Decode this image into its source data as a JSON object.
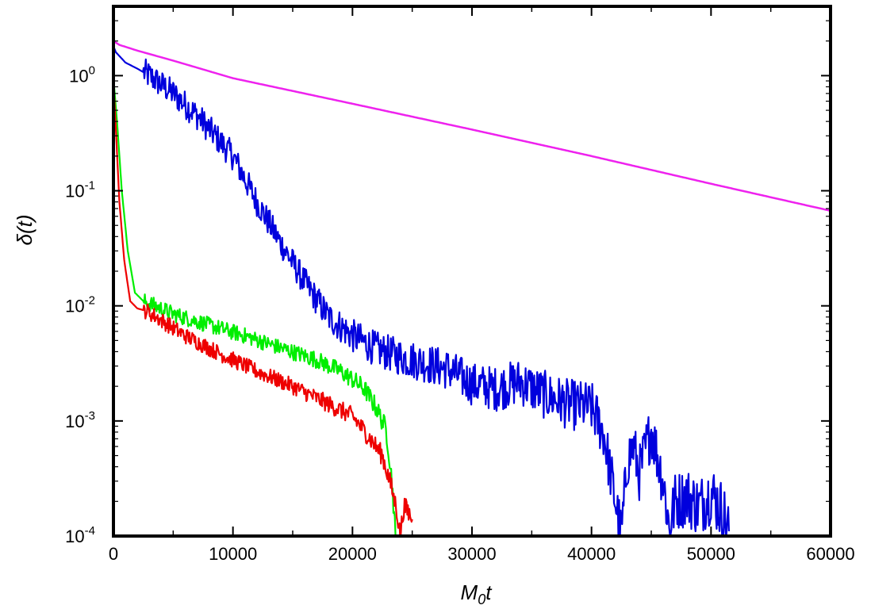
{
  "chart_data": {
    "type": "line",
    "title": "",
    "xlabel": {
      "main": "M",
      "sub": "0",
      "tail": "t"
    },
    "ylabel": "δ(t)",
    "xlim": [
      0,
      60000
    ],
    "ylim": [
      0.0001,
      4
    ],
    "yscale": "log",
    "grid": false,
    "legend": "none",
    "x_ticks": [
      {
        "value": 0,
        "label": "0"
      },
      {
        "value": 10000,
        "label": "10000"
      },
      {
        "value": 20000,
        "label": "20000"
      },
      {
        "value": 30000,
        "label": "30000"
      },
      {
        "value": 40000,
        "label": "40000"
      },
      {
        "value": 50000,
        "label": "50000"
      },
      {
        "value": 60000,
        "label": "60000"
      }
    ],
    "y_ticks": [
      {
        "value": 1,
        "base": "10",
        "exp": "0"
      },
      {
        "value": 0.1,
        "base": "10",
        "exp": "-1"
      },
      {
        "value": 0.01,
        "base": "10",
        "exp": "-2"
      },
      {
        "value": 0.001,
        "base": "10",
        "exp": "-3"
      },
      {
        "value": 0.0001,
        "base": "10",
        "exp": "-4"
      }
    ],
    "series": [
      {
        "color": "#ee22ee",
        "noise": 0,
        "x": [
          0,
          500,
          2000,
          5000,
          10000,
          20000,
          30000,
          40000,
          50000,
          60000
        ],
        "y": [
          2.0,
          1.85,
          1.65,
          1.35,
          0.95,
          0.57,
          0.34,
          0.2,
          0.115,
          0.067
        ]
      },
      {
        "color": "#0000dd",
        "noise": 0.25,
        "x": [
          0,
          200,
          1000,
          2000,
          3000,
          5000,
          7000,
          10000,
          12000,
          14000,
          16000,
          18000,
          20000,
          22000,
          24000,
          26000,
          28000,
          30000,
          32000,
          34000,
          36000,
          38000,
          40000,
          41000,
          42000,
          42500,
          43000,
          43500,
          44000,
          45000,
          46000,
          46500,
          47000,
          48000,
          49000,
          50000,
          51000,
          51500
        ],
        "y": [
          1.8,
          1.6,
          1.3,
          1.15,
          1.0,
          0.7,
          0.45,
          0.2,
          0.08,
          0.035,
          0.016,
          0.008,
          0.0055,
          0.0042,
          0.0036,
          0.0032,
          0.0028,
          0.0021,
          0.0019,
          0.0022,
          0.0017,
          0.0014,
          0.0013,
          0.0008,
          0.0002,
          0.0001,
          0.00045,
          0.0006,
          0.00035,
          0.00085,
          0.0003,
          0.00012,
          0.0002,
          0.00022,
          0.00018,
          0.00024,
          0.00016,
          0.00011
        ]
      },
      {
        "color": "#00ee00",
        "noise": 0.14,
        "x": [
          0,
          300,
          700,
          1200,
          1800,
          2500,
          3000,
          5000,
          8000,
          11000,
          14000,
          17000,
          19000,
          20000,
          21000,
          22000,
          22800,
          23000,
          23300,
          23600
        ],
        "y": [
          0.95,
          0.4,
          0.1,
          0.03,
          0.013,
          0.011,
          0.0105,
          0.0085,
          0.0068,
          0.0055,
          0.0043,
          0.0034,
          0.0027,
          0.0023,
          0.0019,
          0.0013,
          0.00085,
          0.0006,
          0.0003,
          0.0001
        ]
      },
      {
        "color": "#ee0000",
        "noise": 0.14,
        "x": [
          0,
          200,
          500,
          900,
          1400,
          2000,
          2800,
          4000,
          6000,
          9000,
          12000,
          15000,
          18000,
          20000,
          21500,
          22500,
          23200,
          23700,
          24000,
          24300,
          24700,
          25000
        ],
        "y": [
          0.9,
          0.35,
          0.08,
          0.025,
          0.011,
          0.0095,
          0.009,
          0.0075,
          0.0055,
          0.0038,
          0.0027,
          0.002,
          0.0014,
          0.0011,
          0.0007,
          0.0005,
          0.00028,
          0.00017,
          0.0001,
          0.00018,
          0.00016,
          0.00014
        ]
      }
    ]
  }
}
